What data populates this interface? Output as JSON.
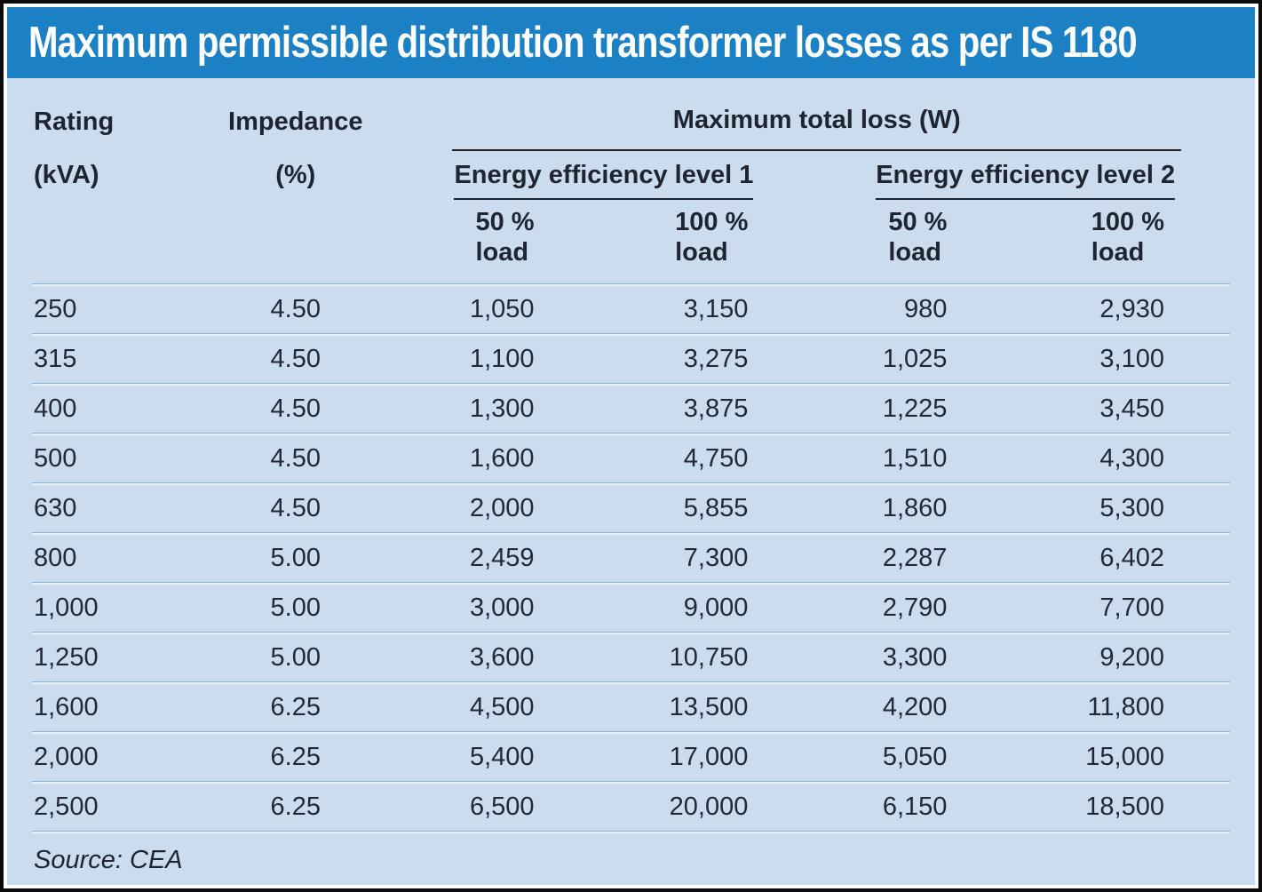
{
  "title": "Maximum permissible distribution transformer losses as per IS 1180",
  "columns": {
    "rating": {
      "line1": "Rating",
      "line2": "(kVA)"
    },
    "impedance": {
      "line1": "Impedance",
      "line2": "(%)"
    },
    "max_total_loss": "Maximum total loss (W)",
    "level1": "Energy efficiency level 1",
    "level2": "Energy efficiency level 2",
    "loads": [
      {
        "pct": "50 %",
        "word": "load"
      },
      {
        "pct": "100 %",
        "word": "load"
      },
      {
        "pct": "50 %",
        "word": "load"
      },
      {
        "pct": "100 %",
        "word": "load"
      }
    ]
  },
  "chart_data": {
    "type": "table",
    "title": "Maximum permissible distribution transformer losses as per IS 1180",
    "column_groups": [
      "Rating (kVA)",
      "Impedance (%)",
      "Maximum total loss (W) - Energy efficiency level 1 - 50 % load",
      "Maximum total loss (W) - Energy efficiency level 1 - 100 % load",
      "Maximum total loss (W) - Energy efficiency level 2 - 50 % load",
      "Maximum total loss (W) - Energy efficiency level 2 - 100 % load"
    ],
    "rows": [
      [
        "250",
        "4.50",
        "1,050",
        "3,150",
        "980",
        "2,930"
      ],
      [
        "315",
        "4.50",
        "1,100",
        "3,275",
        "1,025",
        "3,100"
      ],
      [
        "400",
        "4.50",
        "1,300",
        "3,875",
        "1,225",
        "3,450"
      ],
      [
        "500",
        "4.50",
        "1,600",
        "4,750",
        "1,510",
        "4,300"
      ],
      [
        "630",
        "4.50",
        "2,000",
        "5,855",
        "1,860",
        "5,300"
      ],
      [
        "800",
        "5.00",
        "2,459",
        "7,300",
        "2,287",
        "6,402"
      ],
      [
        "1,000",
        "5.00",
        "3,000",
        "9,000",
        "2,790",
        "7,700"
      ],
      [
        "1,250",
        "5.00",
        "3,600",
        "10,750",
        "3,300",
        "9,200"
      ],
      [
        "1,600",
        "6.25",
        "4,500",
        "13,500",
        "4,200",
        "11,800"
      ],
      [
        "2,000",
        "6.25",
        "5,400",
        "17,000",
        "5,050",
        "15,000"
      ],
      [
        "2,500",
        "6.25",
        "6,500",
        "20,000",
        "6,150",
        "18,500"
      ]
    ]
  },
  "source": {
    "label": "Source:",
    "value": "CEA"
  },
  "colors": {
    "title_bar": "#1b80c4",
    "title_text": "#ffffff",
    "body_bg": "#cbdcee",
    "text": "#1e2531",
    "separator_dark": "#8eb2d3",
    "separator_light": "#e6eff9",
    "header_rule": "#1c2430",
    "outer_border": "#0b0b0b"
  }
}
